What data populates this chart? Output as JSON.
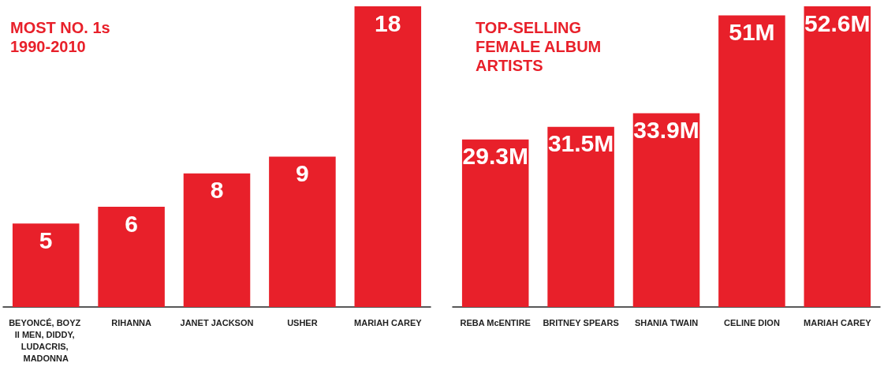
{
  "chart_data": [
    {
      "type": "bar",
      "title": "MOST NO. 1s\n1990-2010",
      "categories": [
        "BEYONCÉ, BOYZ II MEN, DIDDY, LUDACRIS, MADONNA",
        "RIHANNA",
        "JANET JACKSON",
        "USHER",
        "MARIAH CAREY"
      ],
      "values": [
        5,
        6,
        8,
        9,
        18
      ],
      "color": "#e8202a",
      "data_labels": true
    },
    {
      "type": "bar",
      "title": "TOP-SELLING\nFEMALE ALBUM\nARTISTS",
      "categories": [
        "REBA McENTIRE",
        "BRITNEY SPEARS",
        "SHANIA TWAIN",
        "CELINE DION",
        "MARIAH CAREY"
      ],
      "values": [
        29.3,
        31.5,
        33.9,
        51,
        52.6
      ],
      "value_labels": [
        "29.3M",
        "31.5M",
        "33.9M",
        "51M",
        "52.6M"
      ],
      "color": "#e8202a"
    }
  ]
}
